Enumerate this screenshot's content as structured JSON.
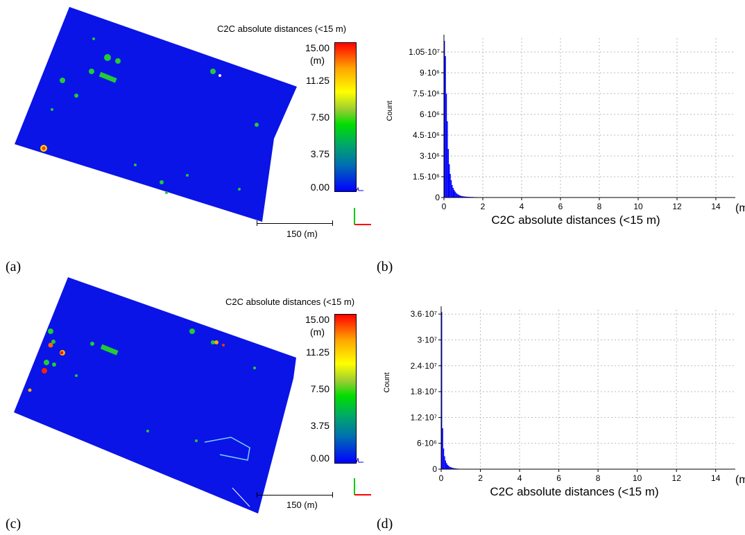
{
  "panels": [
    {
      "label": "(a)",
      "colorbar_title": "C2C absolute distances (<15 m)",
      "colorbar_unit": "(m)",
      "colorbar_ticks": [
        "15.00",
        "11.25",
        "7.50",
        "3.75",
        "0.00"
      ],
      "scale_label": "150  (m)"
    },
    {
      "label": "(b)"
    },
    {
      "label": "(c)",
      "colorbar_title": "C2C absolute distances (<15 m)",
      "colorbar_unit": "(m)",
      "colorbar_ticks": [
        "15.00",
        "11.25",
        "7.50",
        "3.75",
        "0.00"
      ],
      "scale_label": "150  (m)"
    },
    {
      "label": "(d)"
    }
  ],
  "colors": {
    "cloud": "#0a14e6",
    "bars": "#0000ff",
    "grid": "#bbbbbb"
  },
  "chart_data": [
    {
      "type": "bar",
      "xlabel": "C2C absolute distances (<15 m)",
      "x_unit": "(m)",
      "ylabel": "Count",
      "xlim": [
        0,
        15
      ],
      "ylim": [
        0,
        11500000
      ],
      "xticks": [
        "0",
        "2",
        "4",
        "6",
        "8",
        "10",
        "12",
        "14"
      ],
      "yticks": [
        {
          "value": 0,
          "label": "0"
        },
        {
          "value": 1500000,
          "label": "1.5·10⁶"
        },
        {
          "value": 3000000,
          "label": "3·10⁶"
        },
        {
          "value": 4500000,
          "label": "4.5·10⁶"
        },
        {
          "value": 6000000,
          "label": "6·10⁶"
        },
        {
          "value": 7500000,
          "label": "7.5·10⁶"
        },
        {
          "value": 9000000,
          "label": "9·10⁶"
        },
        {
          "value": 10500000,
          "label": "1.05·10⁷"
        }
      ],
      "grid": true,
      "x": [
        0.025,
        0.075,
        0.125,
        0.175,
        0.225,
        0.275,
        0.325,
        0.375,
        0.425,
        0.475,
        0.525,
        0.575,
        0.625,
        0.675,
        0.725,
        0.775,
        0.825,
        0.875,
        0.925,
        0.975,
        1.05,
        1.15,
        1.25,
        1.4,
        1.6,
        1.8,
        2.0,
        2.5,
        3.0,
        4.0,
        6.0
      ],
      "values": [
        11300000,
        10200000,
        7500000,
        5500000,
        3500000,
        2400000,
        1700000,
        1250000,
        900000,
        700000,
        550000,
        430000,
        340000,
        270000,
        220000,
        180000,
        150000,
        125000,
        105000,
        90000,
        75000,
        60000,
        50000,
        40000,
        30000,
        24000,
        18000,
        12000,
        8000,
        5000,
        2000
      ]
    },
    {
      "type": "bar",
      "xlabel": "C2C absolute distances (<15 m)",
      "x_unit": "(m)",
      "ylabel": "Count",
      "xlim": [
        0,
        15
      ],
      "ylim": [
        0,
        37000000
      ],
      "xticks": [
        "0",
        "2",
        "4",
        "6",
        "8",
        "10",
        "12",
        "14"
      ],
      "yticks": [
        {
          "value": 0,
          "label": "0"
        },
        {
          "value": 6000000,
          "label": "6·10⁶"
        },
        {
          "value": 12000000,
          "label": "1.2·10⁷"
        },
        {
          "value": 18000000,
          "label": "1.8·10⁷"
        },
        {
          "value": 24000000,
          "label": "2.4·10⁷"
        },
        {
          "value": 30000000,
          "label": "3·10⁷"
        },
        {
          "value": 36000000,
          "label": "3.6·10⁷"
        }
      ],
      "grid": true,
      "x": [
        0.025,
        0.075,
        0.125,
        0.175,
        0.225,
        0.275,
        0.325,
        0.375,
        0.425,
        0.475,
        0.525,
        0.575,
        0.625,
        0.675,
        0.725,
        0.775,
        0.825,
        0.875,
        0.925,
        0.975,
        1.05,
        1.15,
        1.25,
        1.4,
        1.6,
        1.8,
        2.0,
        2.5,
        3.0,
        4.0,
        6.0
      ],
      "values": [
        36500000,
        9500000,
        4800000,
        3000000,
        2000000,
        1400000,
        1000000,
        800000,
        600000,
        480000,
        390000,
        320000,
        260000,
        220000,
        180000,
        150000,
        125000,
        105000,
        90000,
        78000,
        65000,
        52000,
        43000,
        34000,
        26000,
        20000,
        15000,
        10000,
        7000,
        4000,
        1500
      ]
    }
  ]
}
